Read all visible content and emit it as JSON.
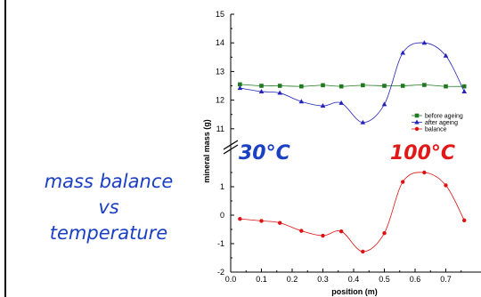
{
  "caption": {
    "line1": "mass balance",
    "line2": "vs",
    "line3": "temperature"
  },
  "chart_data": {
    "type": "line",
    "xlabel": "position (m)",
    "ylabel": "mineral mass (g)",
    "xlim": [
      0.0,
      0.8
    ],
    "ylim": [
      -2,
      15
    ],
    "x_ticks": [
      "0.0",
      "0.1",
      "0.2",
      "0.3",
      "0.4",
      "0.5",
      "0.6",
      "0.7"
    ],
    "y_ticks": [
      "-2",
      "-1",
      "0",
      "1",
      "11",
      "12",
      "13",
      "14",
      "15"
    ],
    "axis_break": {
      "lower_max": 1.5,
      "upper_min": 10.4
    },
    "legend": {
      "placement": "right"
    },
    "annotations": [
      {
        "text": "30°C",
        "color": "#1a3fc4"
      },
      {
        "text": "100°C",
        "color": "#e01818"
      }
    ],
    "series": [
      {
        "name": "before ageing",
        "color": "#1f7a1f",
        "marker": "square",
        "x": [
          0.03,
          0.1,
          0.16,
          0.23,
          0.3,
          0.36,
          0.43,
          0.5,
          0.56,
          0.63,
          0.7,
          0.76
        ],
        "y": [
          12.55,
          12.5,
          12.5,
          12.48,
          12.52,
          12.48,
          12.52,
          12.5,
          12.5,
          12.53,
          12.48,
          12.48
        ]
      },
      {
        "name": "after ageing",
        "color": "#2323b8",
        "marker": "triangle",
        "x": [
          0.03,
          0.1,
          0.16,
          0.23,
          0.3,
          0.36,
          0.43,
          0.5,
          0.56,
          0.63,
          0.7,
          0.76
        ],
        "y": [
          12.42,
          12.3,
          12.25,
          11.95,
          11.8,
          11.9,
          11.22,
          11.85,
          13.65,
          14.0,
          13.55,
          12.3
        ]
      },
      {
        "name": "balance",
        "color": "#dd1111",
        "marker": "circle",
        "x": [
          0.03,
          0.1,
          0.16,
          0.23,
          0.3,
          0.36,
          0.43,
          0.5,
          0.56,
          0.63,
          0.7,
          0.76
        ],
        "y": [
          -0.13,
          -0.2,
          -0.27,
          -0.55,
          -0.72,
          -0.57,
          -1.28,
          -0.63,
          1.17,
          1.5,
          1.05,
          -0.18
        ]
      }
    ]
  }
}
